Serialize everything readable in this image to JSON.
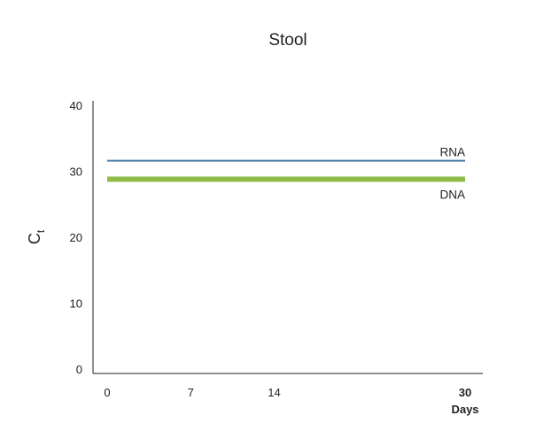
{
  "chart_data": {
    "type": "line",
    "title": "Stool",
    "ylabel": "C",
    "ylabel_subscript": "t",
    "xlabel": "Days",
    "ylim": [
      0,
      40
    ],
    "xlim": [
      0,
      30
    ],
    "y_ticks": [
      0,
      10,
      20,
      30,
      40
    ],
    "x_ticks": [
      {
        "value": 0,
        "label": "0",
        "bold": false
      },
      {
        "value": 7,
        "label": "7",
        "bold": false
      },
      {
        "value": 14,
        "label": "14",
        "bold": false
      },
      {
        "value": 30,
        "label": "30",
        "bold": true
      }
    ],
    "grid": false,
    "legend": "none (series labelled inline at right end of lines)",
    "series": [
      {
        "name": "RNA",
        "x": [
          0,
          30
        ],
        "y": [
          31.6,
          31.6
        ],
        "color": "#4a7ba6",
        "weight": "thin",
        "label_position": "above"
      },
      {
        "name": "DNA",
        "x": [
          0,
          30
        ],
        "y": [
          28.8,
          28.8
        ],
        "color": "#8fbc4a",
        "weight": "thick",
        "label_position": "below"
      }
    ]
  }
}
